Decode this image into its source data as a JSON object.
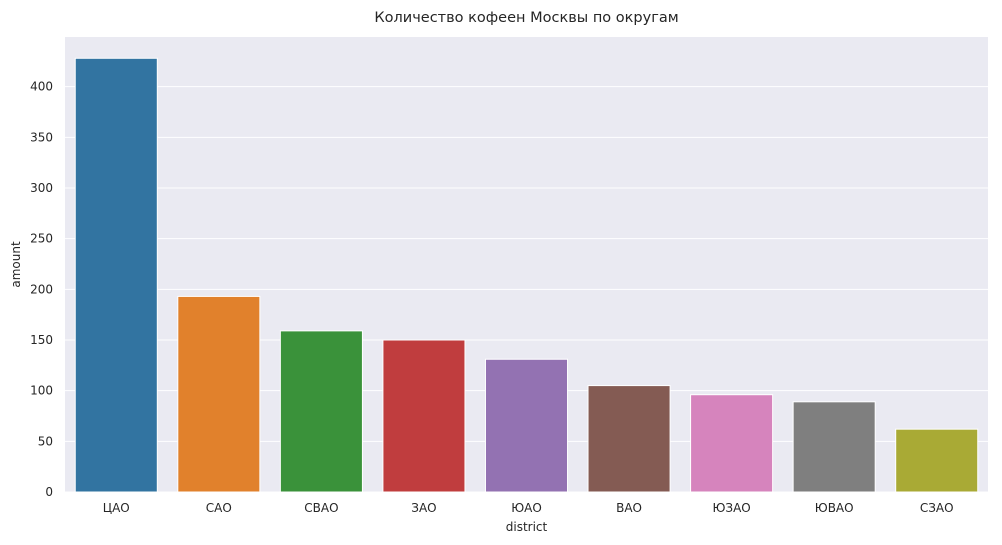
{
  "chart_data": {
    "type": "bar",
    "title": "Количество кофеен Москвы по округам",
    "xlabel": "district",
    "ylabel": "amount",
    "categories": [
      "ЦАО",
      "САО",
      "СВАО",
      "ЗАО",
      "ЮАО",
      "ВАО",
      "ЮЗАО",
      "ЮВАО",
      "СЗАО"
    ],
    "values": [
      428,
      193,
      159,
      150,
      131,
      105,
      96,
      89,
      62
    ],
    "colors": [
      "#3274a1",
      "#e1812c",
      "#3a923a",
      "#c03d3e",
      "#9372b2",
      "#845b53",
      "#d684bd",
      "#7f7f7f",
      "#a9aa35"
    ],
    "yticks": [
      0,
      50,
      100,
      150,
      200,
      250,
      300,
      350,
      400
    ],
    "ylim": [
      0,
      449
    ],
    "grid": true,
    "background": "#eaeaf2",
    "grid_color": "#ffffff"
  }
}
